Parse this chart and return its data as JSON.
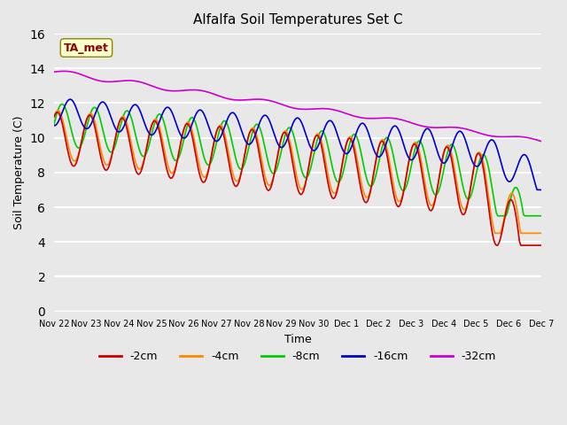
{
  "title": "Alfalfa Soil Temperatures Set C",
  "xlabel": "Time",
  "ylabel": "Soil Temperature (C)",
  "ylim": [
    0,
    16
  ],
  "yticks": [
    0,
    2,
    4,
    6,
    8,
    10,
    12,
    14,
    16
  ],
  "background_color": "#e8e8e8",
  "plot_bg_color": "#e8e8e8",
  "grid_color": "#ffffff",
  "line_colors": {
    "-2cm": "#cc0000",
    "-4cm": "#ff8800",
    "-8cm": "#00cc00",
    "-16cm": "#0000cc",
    "-32cm": "#cc00cc"
  },
  "legend_labels": [
    "-2cm",
    "-4cm",
    "-8cm",
    "-16cm",
    "-32cm"
  ],
  "xtick_labels": [
    "Nov 22",
    "Nov 23",
    "Nov 24",
    "Nov 25",
    "Nov 26",
    "Nov 27",
    "Nov 28",
    "Nov 29",
    "Nov 30",
    "Dec 1",
    "Dec 2",
    "Dec 3",
    "Dec 4",
    "Dec 5",
    "Dec 6",
    "Dec 7"
  ],
  "annotation_text": "TA_met",
  "annotation_color": "#8b0000",
  "annotation_bg": "#ffffcc",
  "linewidth": 1.2
}
